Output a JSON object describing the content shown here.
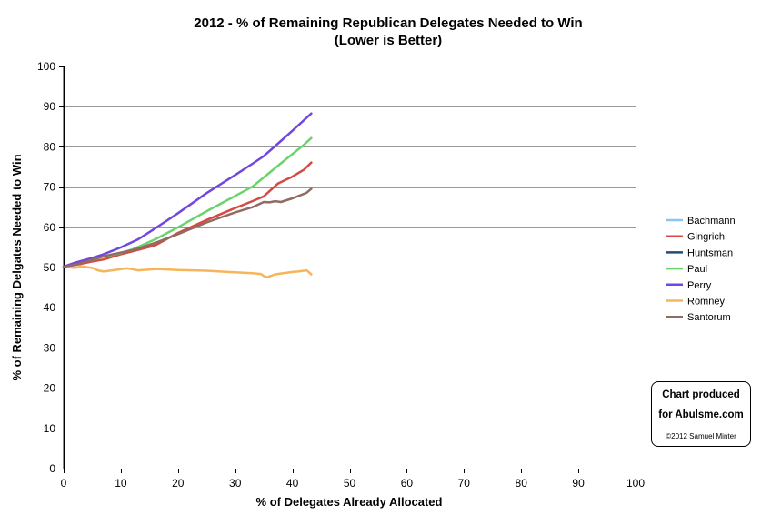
{
  "chart_data": {
    "type": "line",
    "title": "2012 - % of Remaining Republican Delegates Needed to Win",
    "subtitle": "(Lower is Better)",
    "xlabel": "% of Delegates Already Allocated",
    "ylabel": "% of Remaining Delgates Needed to Win",
    "xlim": [
      0,
      100
    ],
    "ylim": [
      0,
      100
    ],
    "xticks": [
      0,
      10,
      20,
      30,
      40,
      50,
      60,
      70,
      80,
      90,
      100
    ],
    "yticks": [
      0,
      10,
      20,
      30,
      40,
      50,
      60,
      70,
      80,
      90,
      100
    ],
    "grid": "horizontal",
    "legend_position": "right",
    "series": [
      {
        "name": "Bachmann",
        "color": "#8ec4f3",
        "points": []
      },
      {
        "name": "Gingrich",
        "color": "#d54a43",
        "points": [
          [
            0,
            50.2
          ],
          [
            2,
            50.6
          ],
          [
            5,
            51.5
          ],
          [
            7,
            52.0
          ],
          [
            10,
            53.3
          ],
          [
            12,
            54.0
          ],
          [
            16,
            55.5
          ],
          [
            20,
            58.6
          ],
          [
            25,
            61.8
          ],
          [
            30,
            64.8
          ],
          [
            33,
            66.5
          ],
          [
            35,
            67.7
          ],
          [
            37.5,
            70.9
          ],
          [
            40,
            72.6
          ],
          [
            42,
            74.3
          ],
          [
            43.3,
            76.1
          ]
        ]
      },
      {
        "name": "Huntsman",
        "color": "#1f4e79",
        "points": []
      },
      {
        "name": "Paul",
        "color": "#6ad46c",
        "points": [
          [
            0,
            50.2
          ],
          [
            2,
            50.9
          ],
          [
            5,
            51.9
          ],
          [
            7,
            52.7
          ],
          [
            10,
            53.6
          ],
          [
            12,
            54.5
          ],
          [
            16,
            57.0
          ],
          [
            20,
            60.0
          ],
          [
            25,
            64.0
          ],
          [
            30,
            67.8
          ],
          [
            33,
            70.1
          ],
          [
            35,
            72.4
          ],
          [
            38,
            75.9
          ],
          [
            40,
            78.2
          ],
          [
            42,
            80.5
          ],
          [
            43.3,
            82.2
          ]
        ]
      },
      {
        "name": "Perry",
        "color": "#7048e0",
        "points": [
          [
            0,
            50.2
          ],
          [
            2,
            51.2
          ],
          [
            5,
            52.4
          ],
          [
            7,
            53.3
          ],
          [
            10,
            55.0
          ],
          [
            13,
            57.0
          ],
          [
            16,
            59.7
          ],
          [
            20,
            63.5
          ],
          [
            25,
            68.5
          ],
          [
            30,
            73.0
          ],
          [
            33,
            75.8
          ],
          [
            35,
            77.7
          ],
          [
            37,
            80.2
          ],
          [
            40,
            84.0
          ],
          [
            42,
            86.6
          ],
          [
            43.3,
            88.3
          ]
        ]
      },
      {
        "name": "Romney",
        "color": "#f7b55a",
        "points": [
          [
            0,
            50.2
          ],
          [
            2,
            49.9
          ],
          [
            3,
            50.3
          ],
          [
            5,
            49.9
          ],
          [
            6,
            49.3
          ],
          [
            7,
            49.0
          ],
          [
            10,
            49.6
          ],
          [
            11,
            49.8
          ],
          [
            12,
            49.6
          ],
          [
            13,
            49.3
          ],
          [
            16,
            49.6
          ],
          [
            17,
            49.6
          ],
          [
            20,
            49.4
          ],
          [
            25,
            49.2
          ],
          [
            30,
            48.8
          ],
          [
            33,
            48.6
          ],
          [
            34.5,
            48.4
          ],
          [
            35,
            47.9
          ],
          [
            35.5,
            47.6
          ],
          [
            36,
            47.8
          ],
          [
            37,
            48.3
          ],
          [
            38,
            48.5
          ],
          [
            40,
            48.9
          ],
          [
            41,
            49.0
          ],
          [
            42,
            49.2
          ],
          [
            42.5,
            49.3
          ],
          [
            43.3,
            48.3
          ]
        ]
      },
      {
        "name": "Santorum",
        "color": "#926a64",
        "points": [
          [
            0,
            50.2
          ],
          [
            2,
            50.7
          ],
          [
            5,
            51.9
          ],
          [
            7,
            52.8
          ],
          [
            10,
            53.7
          ],
          [
            12,
            54.3
          ],
          [
            16,
            56.1
          ],
          [
            20,
            58.3
          ],
          [
            25,
            61.2
          ],
          [
            30,
            63.7
          ],
          [
            33,
            65.0
          ],
          [
            35,
            66.3
          ],
          [
            36,
            66.2
          ],
          [
            37,
            66.5
          ],
          [
            38,
            66.3
          ],
          [
            40,
            67.2
          ],
          [
            42,
            68.3
          ],
          [
            42.5,
            68.6
          ],
          [
            43.3,
            69.6
          ]
        ]
      }
    ]
  },
  "credit": {
    "line1": "Chart produced",
    "line2": "for Abulsme.com",
    "copyright": "©2012 Samuel Minter"
  }
}
